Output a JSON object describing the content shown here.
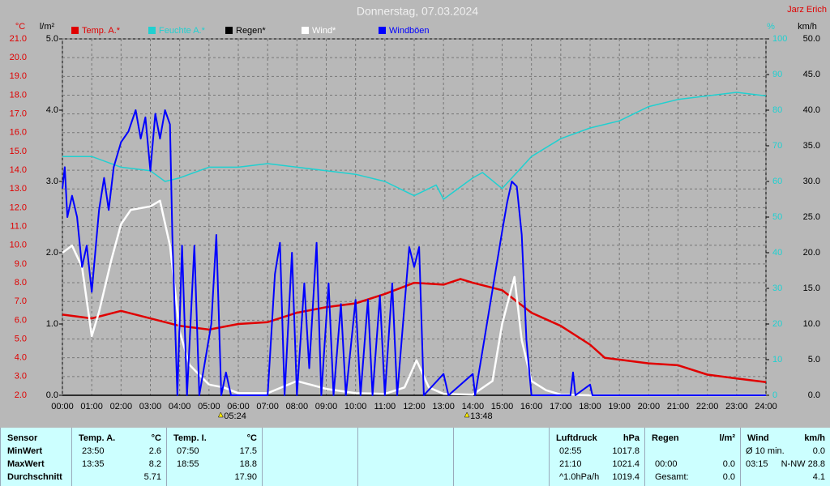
{
  "chart_data": {
    "type": "line",
    "title": "Donnerstag, 07.03.2024",
    "author": "Jarz Erich",
    "xlim": [
      0,
      24
    ],
    "xticks": [
      {
        "value": 0,
        "label": "00:00"
      },
      {
        "value": 1,
        "label": "01:00"
      },
      {
        "value": 2,
        "label": "02:00"
      },
      {
        "value": 3,
        "label": "03:00"
      },
      {
        "value": 4,
        "label": "04:00"
      },
      {
        "value": 5,
        "label": "05:00"
      },
      {
        "value": 6,
        "label": "06:00"
      },
      {
        "value": 7,
        "label": "07:00"
      },
      {
        "value": 8,
        "label": "08:00"
      },
      {
        "value": 9,
        "label": "09:00"
      },
      {
        "value": 10,
        "label": "10:00"
      },
      {
        "value": 11,
        "label": "11:00"
      },
      {
        "value": 12,
        "label": "12:00"
      },
      {
        "value": 13,
        "label": "13:00"
      },
      {
        "value": 14,
        "label": "14:00"
      },
      {
        "value": 15,
        "label": "15:00"
      },
      {
        "value": 16,
        "label": "16:00"
      },
      {
        "value": 17,
        "label": "17:00"
      },
      {
        "value": 18,
        "label": "18:00"
      },
      {
        "value": 19,
        "label": "19:00"
      },
      {
        "value": 20,
        "label": "20:00"
      },
      {
        "value": 21,
        "label": "21:00"
      },
      {
        "value": 22,
        "label": "22:00"
      },
      {
        "value": 23,
        "label": "23:00"
      },
      {
        "value": 24,
        "label": "24:00"
      }
    ],
    "annotations": [
      {
        "x": 5.4,
        "label": "05:24"
      },
      {
        "x": 13.8,
        "label": "13:48"
      }
    ],
    "grid": true,
    "axes": {
      "temp": {
        "label": "°C",
        "color": "#e00000",
        "lim": [
          2,
          21
        ],
        "ticks": [
          {
            "value": 2,
            "label": "2.0"
          },
          {
            "value": 3,
            "label": "3.0"
          },
          {
            "value": 4,
            "label": "4.0"
          },
          {
            "value": 5,
            "label": "5.0"
          },
          {
            "value": 6,
            "label": "6.0"
          },
          {
            "value": 7,
            "label": "7.0"
          },
          {
            "value": 8,
            "label": "8.0"
          },
          {
            "value": 9,
            "label": "9.0"
          },
          {
            "value": 10,
            "label": "10.0"
          },
          {
            "value": 11,
            "label": "11.0"
          },
          {
            "value": 12,
            "label": "12.0"
          },
          {
            "value": 13,
            "label": "13.0"
          },
          {
            "value": 14,
            "label": "14.0"
          },
          {
            "value": 15,
            "label": "15.0"
          },
          {
            "value": 16,
            "label": "16.0"
          },
          {
            "value": 17,
            "label": "17.0"
          },
          {
            "value": 18,
            "label": "18.0"
          },
          {
            "value": 19,
            "label": "19.0"
          },
          {
            "value": 20,
            "label": "20.0"
          },
          {
            "value": 21,
            "label": "21.0"
          }
        ]
      },
      "rain": {
        "label": "l/m²",
        "color": "#000000",
        "lim": [
          0,
          5
        ],
        "ticks": [
          {
            "value": 0,
            "label": "0.0"
          },
          {
            "value": 1,
            "label": "1.0"
          },
          {
            "value": 2,
            "label": "2.0"
          },
          {
            "value": 3,
            "label": "3.0"
          },
          {
            "value": 4,
            "label": "4.0"
          },
          {
            "value": 5,
            "label": "5.0"
          }
        ]
      },
      "humidity": {
        "label": "%",
        "color": "#20d0d0",
        "lim": [
          0,
          100
        ],
        "ticks": [
          0,
          10,
          20,
          30,
          40,
          50,
          60,
          70,
          80,
          90,
          100
        ]
      },
      "wind": {
        "label": "km/h",
        "color": "#000000",
        "lim": [
          0,
          50
        ],
        "ticks": [
          {
            "value": 0,
            "label": "0.0"
          },
          {
            "value": 5,
            "label": "5.0"
          },
          {
            "value": 10,
            "label": "10.0"
          },
          {
            "value": 15,
            "label": "15.0"
          },
          {
            "value": 20,
            "label": "20.0"
          },
          {
            "value": 25,
            "label": "25.0"
          },
          {
            "value": 30,
            "label": "30.0"
          },
          {
            "value": 35,
            "label": "35.0"
          },
          {
            "value": 40,
            "label": "40.0"
          },
          {
            "value": 45,
            "label": "45.0"
          },
          {
            "value": 50,
            "label": "50.0"
          }
        ]
      }
    },
    "series": [
      {
        "name": "Temp. A.*",
        "color": "#e00000",
        "axis": "temp",
        "width": 2.5,
        "x": [
          0,
          1,
          2,
          3,
          4,
          5,
          6,
          7,
          8,
          9,
          10,
          11,
          12,
          13,
          13.58,
          14,
          15,
          16,
          17,
          18,
          18.5,
          19,
          20,
          21,
          22,
          23,
          24
        ],
        "values": [
          6.3,
          6.1,
          6.5,
          6.1,
          5.7,
          5.5,
          5.8,
          5.9,
          6.4,
          6.7,
          6.9,
          7.4,
          8.0,
          7.9,
          8.2,
          8.0,
          7.6,
          6.4,
          5.7,
          4.7,
          4.0,
          3.9,
          3.7,
          3.6,
          3.1,
          2.9,
          2.7
        ]
      },
      {
        "name": "Feuchte A.*",
        "color": "#20d0d0",
        "axis": "humidity",
        "width": 1.5,
        "x": [
          0,
          1,
          2,
          3,
          3.5,
          4,
          5,
          6,
          7,
          8,
          9,
          10,
          11,
          12,
          12.75,
          13,
          14,
          14.33,
          15,
          16,
          17,
          18,
          19,
          20,
          21,
          22,
          23,
          24
        ],
        "values": [
          67,
          67,
          64,
          63,
          60,
          61,
          64,
          64,
          65,
          64,
          63,
          62,
          60,
          56,
          59,
          55,
          61,
          62.5,
          58,
          67,
          72,
          75,
          77,
          81,
          83,
          84,
          85,
          84
        ]
      },
      {
        "name": "Regen*",
        "color": "#000000",
        "axis": "rain",
        "width": 1.5,
        "x": [
          0,
          24
        ],
        "values": [
          0,
          0
        ]
      },
      {
        "name": "Wind*",
        "color": "#ffffff",
        "axis": "wind",
        "width": 2.5,
        "x": [
          0,
          0.33,
          0.67,
          1,
          1.25,
          1.67,
          2,
          2.33,
          3,
          3.33,
          3.67,
          4,
          4.33,
          5,
          5.5,
          6,
          7,
          8,
          9,
          10,
          11,
          11.67,
          12.08,
          12.5,
          13,
          14,
          14.67,
          15,
          15.42,
          15.67,
          16,
          16.5,
          17,
          18,
          24
        ],
        "values": [
          20,
          21,
          18,
          8.3,
          11.7,
          19,
          24,
          26,
          26.5,
          27.3,
          21,
          8.9,
          4.3,
          1.5,
          1.1,
          0.3,
          0.3,
          2,
          0.9,
          0.3,
          0.2,
          1.1,
          4.9,
          1.1,
          0.2,
          0.1,
          2,
          10,
          16.6,
          7.7,
          2,
          0.7,
          0.1,
          0,
          0
        ]
      },
      {
        "name": "Windböen",
        "color": "#0000ff",
        "axis": "wind",
        "width": 2,
        "x": [
          0,
          0.08,
          0.17,
          0.33,
          0.5,
          0.67,
          0.83,
          1,
          1.25,
          1.42,
          1.58,
          1.75,
          2,
          2.25,
          2.5,
          2.67,
          2.83,
          3,
          3.17,
          3.33,
          3.5,
          3.67,
          3.75,
          3.92,
          4.08,
          4.25,
          4.5,
          4.67,
          5.08,
          5.25,
          5.42,
          5.58,
          5.75,
          7,
          7.25,
          7.42,
          7.58,
          7.83,
          8,
          8.25,
          8.42,
          8.67,
          8.83,
          9.08,
          9.25,
          9.5,
          9.67,
          10,
          10.17,
          10.42,
          10.58,
          10.83,
          11,
          11.25,
          11.42,
          11.83,
          12,
          12.17,
          12.33,
          13,
          13.17,
          14,
          14.08,
          15,
          15.17,
          15.33,
          15.5,
          15.67,
          15.83,
          16,
          17.33,
          17.42,
          17.5,
          18,
          18.08,
          24
        ],
        "values": [
          29,
          32,
          25,
          28,
          25,
          18,
          21,
          14.5,
          26,
          30.5,
          26,
          32,
          35.5,
          37,
          40,
          36,
          39,
          31.5,
          39.5,
          36,
          40,
          38,
          22.5,
          0,
          21,
          0,
          21,
          0,
          10,
          22.5,
          0,
          3.2,
          0,
          0,
          17,
          21.4,
          0,
          20,
          0,
          15.7,
          3.8,
          21.4,
          0,
          15.7,
          0,
          12.8,
          0,
          13.4,
          0,
          13.4,
          0,
          14,
          0,
          15.7,
          0,
          20.8,
          18,
          20.8,
          0,
          3,
          0,
          3,
          0,
          23,
          27,
          30,
          29.3,
          22.5,
          7.7,
          0,
          0,
          3.2,
          0,
          1.5,
          0,
          0
        ]
      }
    ]
  },
  "table": {
    "groups": [
      {
        "header": "Sensor",
        "rows": [
          "MinWert",
          "MaxWert",
          "Durchschnitt"
        ]
      },
      {
        "header": "Temp. A.",
        "unit": "°C",
        "rows": [
          [
            "23:50",
            "2.6"
          ],
          [
            "13:35",
            "8.2"
          ],
          [
            null,
            "5.71"
          ]
        ]
      },
      {
        "header": "Temp. I.",
        "unit": "°C",
        "rows": [
          [
            "07:50",
            "17.5"
          ],
          [
            "18:55",
            "18.8"
          ],
          [
            null,
            "17.90"
          ]
        ]
      },
      {
        "header": "Luftdruck",
        "unit": "hPa",
        "rows": [
          [
            "02:55",
            "1017.8"
          ],
          [
            "21:10",
            "1021.4"
          ],
          [
            "^1.0hPa/h",
            "1019.4"
          ]
        ]
      },
      {
        "header": "Regen",
        "unit": "l/m²",
        "rows": [
          [
            null,
            null
          ],
          [
            "00:00",
            "0.0"
          ],
          [
            "Gesamt:",
            "0.0"
          ]
        ]
      },
      {
        "header": "Wind",
        "unit": "km/h",
        "rows": [
          [
            "Ø 10 min.",
            "0.0"
          ],
          [
            "03:15",
            "N-NW 28.8"
          ],
          [
            null,
            "4.1"
          ]
        ]
      }
    ]
  }
}
